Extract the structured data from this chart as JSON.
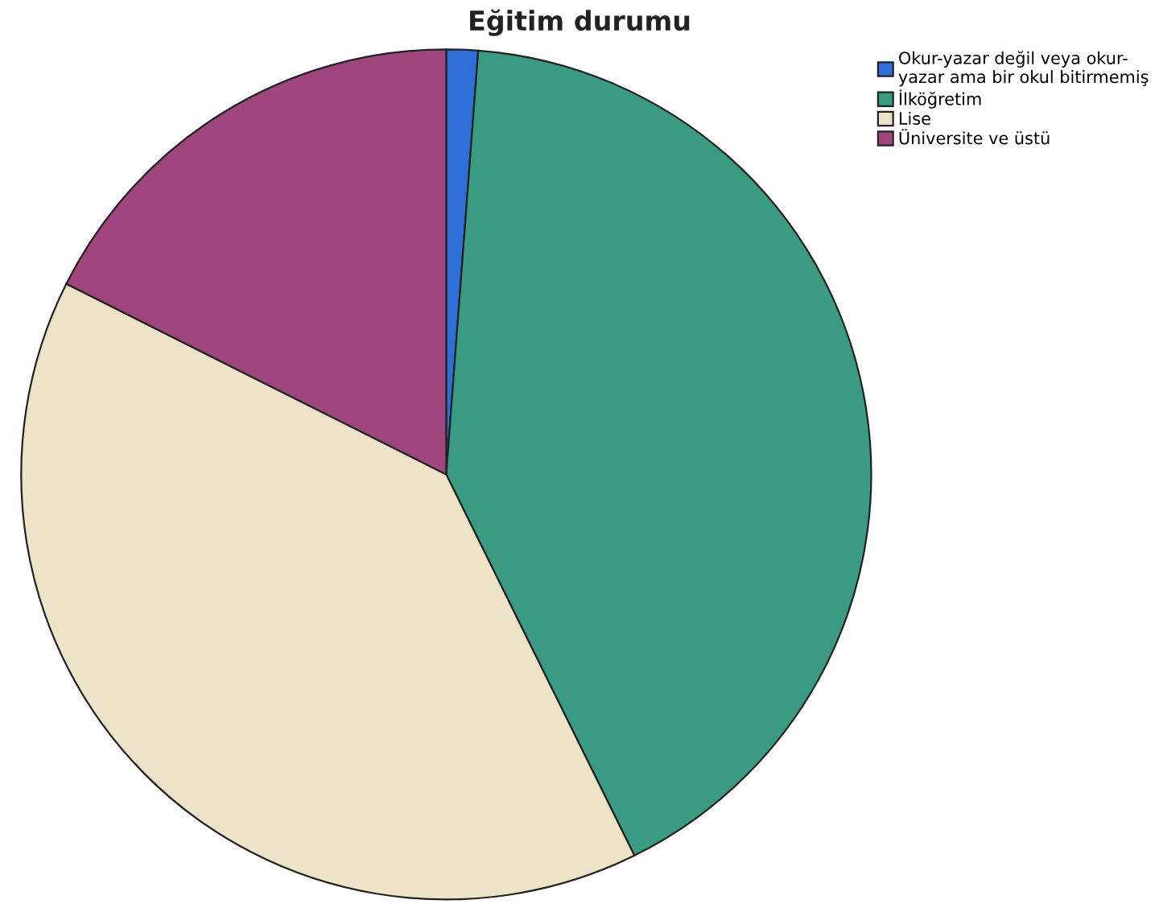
{
  "chart_data": {
    "type": "pie",
    "title": "Eğitim durumu",
    "categories": [
      "Okur-yazar değil veya okur-\nyazar ama bir okul bitirmemiş",
      "İlköğretim",
      "Lise",
      "Üniversite ve üstü"
    ],
    "values": [
      1.2,
      41.5,
      39.7,
      17.6
    ],
    "colors": [
      "#2f6fd8",
      "#3a9a82",
      "#ede3c9",
      "#a0467e"
    ],
    "legend": "top right"
  }
}
